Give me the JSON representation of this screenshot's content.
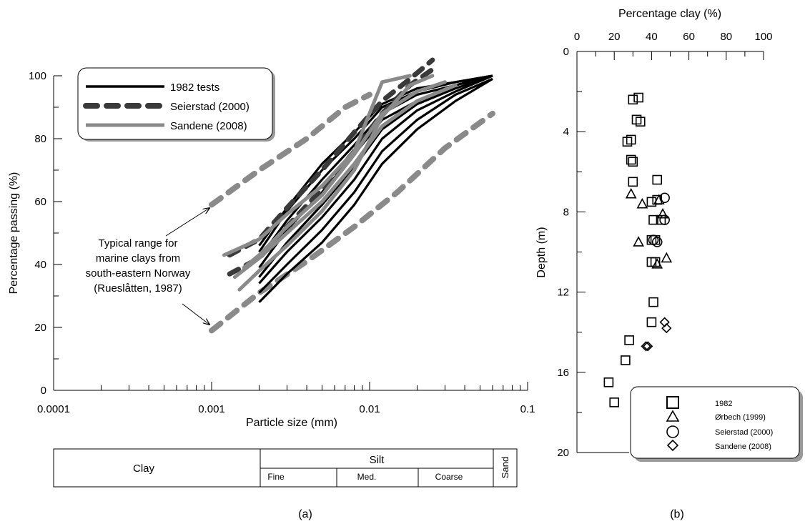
{
  "chart_data": [
    {
      "panel_label": "(a)",
      "type": "line",
      "xlabel": "Particle size (mm)",
      "ylabel": "Percentage passing (%)",
      "x_scale": "log",
      "xlim": [
        0.0001,
        0.1
      ],
      "ylim": [
        0,
        100
      ],
      "x_ticks": [
        "0.0001",
        "0.001",
        "0.01",
        "0.1"
      ],
      "y_ticks": [
        "0",
        "20",
        "40",
        "60",
        "80",
        "100"
      ],
      "legend": {
        "position": "top-left",
        "entries": [
          "1982 tests",
          "Seierstad (2000)",
          "Sandene (2008)"
        ]
      },
      "annotation": {
        "lines": [
          "Typical range for",
          "marine clays from",
          "south-eastern Norway",
          "(Rueslåtten, 1987)"
        ]
      },
      "series": [
        {
          "name": "1982 tests",
          "style": "solid-black",
          "curves": [
            {
              "x": [
                0.002,
                0.003,
                0.005,
                0.008,
                0.012,
                0.02,
                0.035,
                0.06
              ],
              "y": [
                28,
                37,
                47,
                59,
                72,
                83,
                92,
                99
              ]
            },
            {
              "x": [
                0.002,
                0.003,
                0.005,
                0.008,
                0.012,
                0.02,
                0.035,
                0.06
              ],
              "y": [
                31,
                40,
                51,
                63,
                76,
                86,
                94,
                99
              ]
            },
            {
              "x": [
                0.002,
                0.003,
                0.005,
                0.008,
                0.012,
                0.02,
                0.035,
                0.06
              ],
              "y": [
                34,
                44,
                55,
                67,
                80,
                89,
                95,
                100
              ]
            },
            {
              "x": [
                0.002,
                0.003,
                0.005,
                0.008,
                0.012,
                0.02,
                0.035,
                0.06
              ],
              "y": [
                36,
                47,
                59,
                71,
                83,
                91,
                96,
                100
              ]
            },
            {
              "x": [
                0.002,
                0.003,
                0.005,
                0.008,
                0.012,
                0.02,
                0.035,
                0.06
              ],
              "y": [
                39,
                51,
                63,
                75,
                86,
                92,
                97,
                100
              ]
            },
            {
              "x": [
                0.002,
                0.003,
                0.005,
                0.008,
                0.012,
                0.02,
                0.035,
                0.06
              ],
              "y": [
                42,
                54,
                67,
                78,
                88,
                94,
                97,
                100
              ]
            },
            {
              "x": [
                0.002,
                0.003,
                0.005,
                0.008,
                0.012,
                0.02,
                0.035,
                0.06
              ],
              "y": [
                44,
                57,
                70,
                80,
                90,
                95,
                98,
                100
              ]
            },
            {
              "x": [
                0.002,
                0.003,
                0.005,
                0.008,
                0.012,
                0.02,
                0.035,
                0.06
              ],
              "y": [
                46,
                58,
                72,
                82,
                91,
                96,
                98,
                100
              ]
            }
          ]
        },
        {
          "name": "Seierstad (2000)",
          "style": "dashed-dark",
          "curves": [
            {
              "x": [
                0.0013,
                0.002,
                0.003,
                0.005,
                0.008,
                0.012,
                0.018,
                0.025
              ],
              "y": [
                37,
                42,
                52,
                64,
                76,
                88,
                97,
                102
              ]
            },
            {
              "x": [
                0.0013,
                0.002,
                0.003,
                0.005,
                0.008,
                0.012,
                0.018,
                0.025
              ],
              "y": [
                43,
                48,
                58,
                70,
                82,
                92,
                99,
                105
              ]
            }
          ]
        },
        {
          "name": "Sandene (2008)",
          "style": "solid-gray",
          "curves": [
            {
              "x": [
                0.0015,
                0.002,
                0.003,
                0.005,
                0.008,
                0.012,
                0.018,
                0.025
              ],
              "y": [
                32,
                38,
                46,
                57,
                70,
                87,
                97,
                100
              ]
            },
            {
              "x": [
                0.0012,
                0.002,
                0.003,
                0.005,
                0.008,
                0.012,
                0.018
              ],
              "y": [
                43,
                48,
                56,
                65,
                76,
                98,
                100
              ]
            },
            {
              "x": [
                0.0014,
                0.002,
                0.003,
                0.005,
                0.008,
                0.012,
                0.02,
                0.035
              ],
              "y": [
                36,
                42,
                50,
                60,
                72,
                84,
                92,
                97
              ]
            },
            {
              "x": [
                0.0016,
                0.002,
                0.003,
                0.005,
                0.008,
                0.012,
                0.02,
                0.03
              ],
              "y": [
                39,
                43,
                52,
                62,
                75,
                88,
                95,
                98
              ]
            }
          ]
        },
        {
          "name": "Typical range for marine clays from south-eastern Norway (Rueslåtten, 1987)",
          "style": "dashed-light",
          "curves": [
            {
              "x": [
                0.001,
                0.002,
                0.004,
                0.007,
                0.01
              ],
              "y": [
                59,
                70,
                80,
                90,
                94
              ]
            },
            {
              "x": [
                0.001,
                0.002,
                0.004,
                0.008,
                0.015,
                0.03,
                0.06
              ],
              "y": [
                19,
                31,
                41,
                52,
                63,
                77,
                88
              ]
            }
          ]
        }
      ],
      "size_classes": {
        "clay": "Clay",
        "silt": "Silt",
        "silt_sub": [
          "Fine",
          "Med.",
          "Coarse"
        ],
        "sand": "Sand"
      }
    },
    {
      "panel_label": "(b)",
      "type": "scatter",
      "xlabel": "Percentage clay (%)",
      "ylabel": "Depth (m)",
      "xlim": [
        0,
        100
      ],
      "ylim": [
        0,
        20
      ],
      "y_inverted": true,
      "x_axis_position": "top",
      "x_ticks": [
        "0",
        "20",
        "40",
        "60",
        "80",
        "100"
      ],
      "y_ticks": [
        "0",
        "4",
        "8",
        "12",
        "16",
        "20"
      ],
      "legend": {
        "position": "bottom-right",
        "entries": [
          "1982",
          "Ørbech (1999)",
          "Seierstad (2000)",
          "Sandene (2008)"
        ]
      },
      "series": [
        {
          "name": "1982",
          "marker": "square",
          "points": [
            {
              "x": 30,
              "y": 2.4
            },
            {
              "x": 33,
              "y": 2.3
            },
            {
              "x": 32,
              "y": 3.4
            },
            {
              "x": 34,
              "y": 3.5
            },
            {
              "x": 27,
              "y": 4.5
            },
            {
              "x": 29,
              "y": 4.4
            },
            {
              "x": 29,
              "y": 5.4
            },
            {
              "x": 30,
              "y": 5.5
            },
            {
              "x": 30,
              "y": 6.5
            },
            {
              "x": 43,
              "y": 6.4
            },
            {
              "x": 40,
              "y": 7.5
            },
            {
              "x": 43,
              "y": 7.4
            },
            {
              "x": 41,
              "y": 8.4
            },
            {
              "x": 45,
              "y": 8.4
            },
            {
              "x": 40,
              "y": 9.4
            },
            {
              "x": 42,
              "y": 9.4
            },
            {
              "x": 40,
              "y": 10.5
            },
            {
              "x": 42,
              "y": 10.5
            },
            {
              "x": 41,
              "y": 12.5
            },
            {
              "x": 40,
              "y": 13.5
            },
            {
              "x": 28,
              "y": 14.4
            },
            {
              "x": 26,
              "y": 15.4
            },
            {
              "x": 17,
              "y": 16.5
            },
            {
              "x": 20,
              "y": 17.5
            }
          ]
        },
        {
          "name": "Ørbech (1999)",
          "marker": "triangle",
          "points": [
            {
              "x": 29,
              "y": 7.1
            },
            {
              "x": 35,
              "y": 7.6
            },
            {
              "x": 44,
              "y": 7.4
            },
            {
              "x": 46,
              "y": 8.1
            },
            {
              "x": 33,
              "y": 9.5
            },
            {
              "x": 48,
              "y": 10.3
            },
            {
              "x": 43,
              "y": 10.6
            }
          ]
        },
        {
          "name": "Seierstad (2000)",
          "marker": "circle",
          "points": [
            {
              "x": 47,
              "y": 7.3
            },
            {
              "x": 47,
              "y": 8.4
            },
            {
              "x": 41,
              "y": 9.4
            },
            {
              "x": 43,
              "y": 9.5
            }
          ]
        },
        {
          "name": "Sandene (2008)",
          "marker": "diamond",
          "points": [
            {
              "x": 47,
              "y": 13.5
            },
            {
              "x": 48,
              "y": 13.8
            },
            {
              "x": 37,
              "y": 14.7
            },
            {
              "x": 38,
              "y": 14.7
            }
          ]
        }
      ]
    }
  ]
}
